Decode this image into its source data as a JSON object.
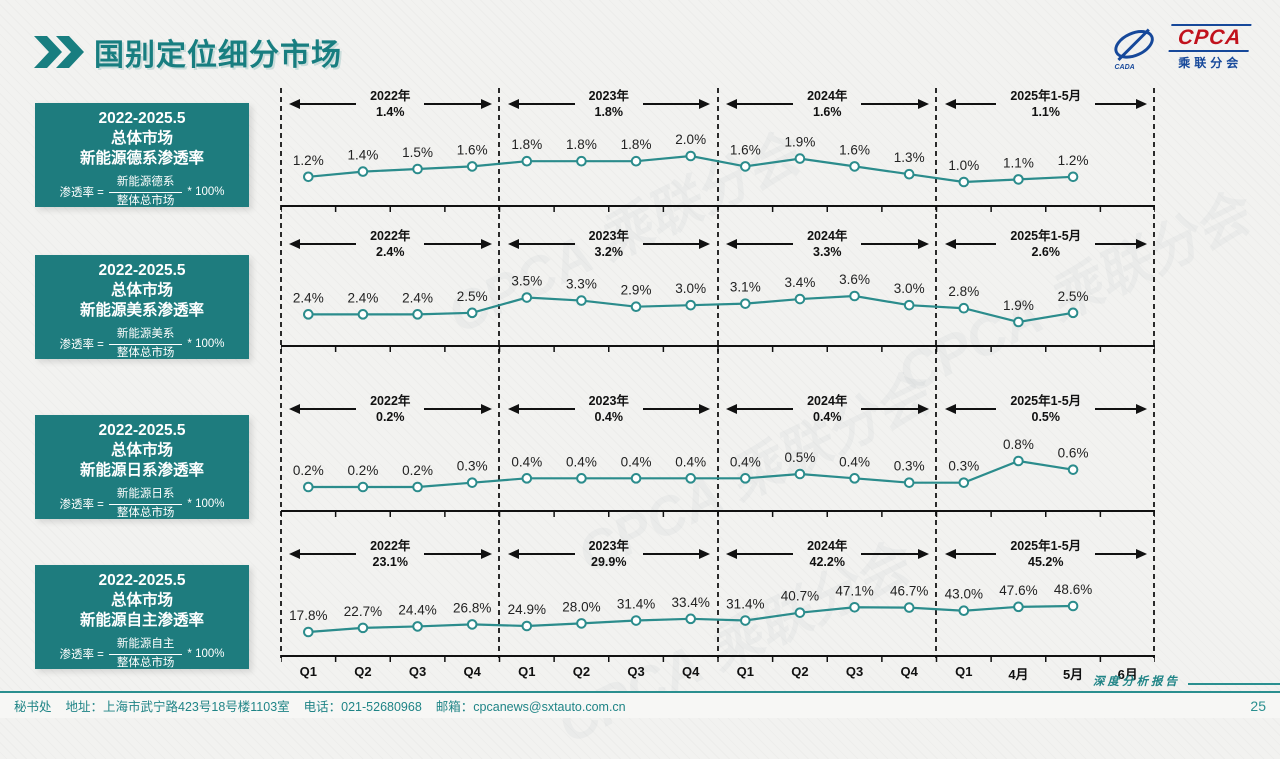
{
  "page": {
    "title": "国别定位细分市场",
    "page_number": "25",
    "report_tag": "深度分析报告",
    "footer": {
      "secretariat": "秘书处",
      "address": "地址：上海市武宁路423号18号楼1103室",
      "phone": "电话：021-52680968",
      "email": "邮箱：cpcanews@sxtauto.com.cn"
    }
  },
  "logo": {
    "cpca": "CPCA",
    "subtitle": "乘联分会",
    "small": "CADA"
  },
  "watermark": {
    "text": "CPCA 乘联分会"
  },
  "colors": {
    "accent": "#187e80",
    "box_bg": "#1e7c7e",
    "line": "#2b8c8c",
    "logo_blue": "#16489a",
    "logo_red": "#c1121c",
    "footer_teal": "#2a8f8f"
  },
  "x_labels": [
    "Q1",
    "Q2",
    "Q3",
    "Q4",
    "Q1",
    "Q2",
    "Q3",
    "Q4",
    "Q1",
    "Q2",
    "Q3",
    "Q4",
    "Q1",
    "4月",
    "5月",
    "6月"
  ],
  "chart_data": [
    {
      "type": "line",
      "title": [
        "2022-2025.5",
        "总体市场",
        "新能源德系渗透率"
      ],
      "formula": {
        "lhs": "渗透率 =",
        "numerator": "新能源德系",
        "denominator": "整体总市场",
        "suffix": "* 100%"
      },
      "segments": [
        {
          "label": "2022年",
          "value": "1.4%"
        },
        {
          "label": "2023年",
          "value": "1.8%"
        },
        {
          "label": "2024年",
          "value": "1.6%"
        },
        {
          "label": "2025年1-5月",
          "value": "1.1%"
        }
      ],
      "x": [
        "Q1",
        "Q2",
        "Q3",
        "Q4",
        "Q1",
        "Q2",
        "Q3",
        "Q4",
        "Q1",
        "Q2",
        "Q3",
        "Q4",
        "Q1",
        "4月",
        "5月"
      ],
      "values": [
        1.2,
        1.4,
        1.5,
        1.6,
        1.8,
        1.8,
        1.8,
        2.0,
        1.6,
        1.9,
        1.6,
        1.3,
        1.0,
        1.1,
        1.2
      ],
      "unit": "%",
      "grid": false,
      "marker": "open-circle"
    },
    {
      "type": "line",
      "title": [
        "2022-2025.5",
        "总体市场",
        "新能源美系渗透率"
      ],
      "formula": {
        "lhs": "渗透率 =",
        "numerator": "新能源美系",
        "denominator": "整体总市场",
        "suffix": "* 100%"
      },
      "segments": [
        {
          "label": "2022年",
          "value": "2.4%"
        },
        {
          "label": "2023年",
          "value": "3.2%"
        },
        {
          "label": "2024年",
          "value": "3.3%"
        },
        {
          "label": "2025年1-5月",
          "value": "2.6%"
        }
      ],
      "x": [
        "Q1",
        "Q2",
        "Q3",
        "Q4",
        "Q1",
        "Q2",
        "Q3",
        "Q4",
        "Q1",
        "Q2",
        "Q3",
        "Q4",
        "Q1",
        "4月",
        "5月"
      ],
      "values": [
        2.4,
        2.4,
        2.4,
        2.5,
        3.5,
        3.3,
        2.9,
        3.0,
        3.1,
        3.4,
        3.6,
        3.0,
        2.8,
        1.9,
        2.5
      ],
      "unit": "%",
      "grid": false,
      "marker": "open-circle"
    },
    {
      "type": "line",
      "title": [
        "2022-2025.5",
        "总体市场",
        "新能源日系渗透率"
      ],
      "formula": {
        "lhs": "渗透率 =",
        "numerator": "新能源日系",
        "denominator": "整体总市场",
        "suffix": "* 100%"
      },
      "segments": [
        {
          "label": "2022年",
          "value": "0.2%"
        },
        {
          "label": "2023年",
          "value": "0.4%"
        },
        {
          "label": "2024年",
          "value": "0.4%"
        },
        {
          "label": "2025年1-5月",
          "value": "0.5%"
        }
      ],
      "x": [
        "Q1",
        "Q2",
        "Q3",
        "Q4",
        "Q1",
        "Q2",
        "Q3",
        "Q4",
        "Q1",
        "Q2",
        "Q3",
        "Q4",
        "Q1",
        "4月",
        "5月"
      ],
      "values": [
        0.2,
        0.2,
        0.2,
        0.3,
        0.4,
        0.4,
        0.4,
        0.4,
        0.4,
        0.5,
        0.4,
        0.3,
        0.3,
        0.8,
        0.6
      ],
      "unit": "%",
      "grid": false,
      "marker": "open-circle"
    },
    {
      "type": "line",
      "title": [
        "2022-2025.5",
        "总体市场",
        "新能源自主渗透率"
      ],
      "formula": {
        "lhs": "渗透率 =",
        "numerator": "新能源自主",
        "denominator": "整体总市场",
        "suffix": "* 100%"
      },
      "segments": [
        {
          "label": "2022年",
          "value": "23.1%"
        },
        {
          "label": "2023年",
          "value": "29.9%"
        },
        {
          "label": "2024年",
          "value": "42.2%"
        },
        {
          "label": "2025年1-5月",
          "value": "45.2%"
        }
      ],
      "x": [
        "Q1",
        "Q2",
        "Q3",
        "Q4",
        "Q1",
        "Q2",
        "Q3",
        "Q4",
        "Q1",
        "Q2",
        "Q3",
        "Q4",
        "Q1",
        "4月",
        "5月"
      ],
      "values": [
        17.8,
        22.7,
        24.4,
        26.8,
        24.9,
        28.0,
        31.4,
        33.4,
        31.4,
        40.7,
        47.1,
        46.7,
        43.0,
        47.6,
        48.6
      ],
      "unit": "%",
      "grid": false,
      "marker": "open-circle"
    }
  ]
}
